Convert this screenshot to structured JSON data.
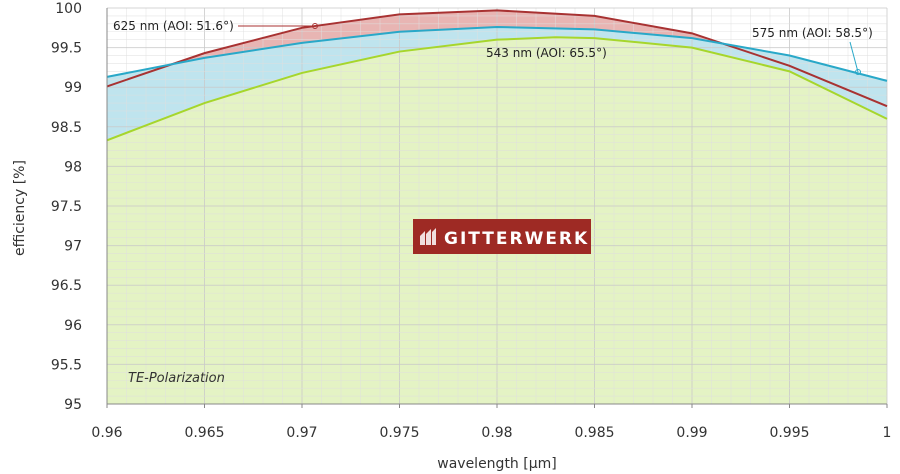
{
  "chart_data": {
    "type": "area",
    "xlabel": "wavelength [µm]",
    "ylabel": "efficiency [%]",
    "xlim": [
      0.96,
      1.0
    ],
    "ylim": [
      95,
      100
    ],
    "x_ticks": [
      "0.96",
      "0.965",
      "0.97",
      "0.975",
      "0.98",
      "0.985",
      "0.99",
      "0.995",
      "1"
    ],
    "y_ticks": [
      "95",
      "95.5",
      "96",
      "96.5",
      "97",
      "97.5",
      "98",
      "98.5",
      "99",
      "99.5",
      "100"
    ],
    "grid": true,
    "series": [
      {
        "name": "543 nm (AOI: 65.5°)",
        "color": "#a6d62c",
        "fill": "#e4f3c4",
        "x": [
          0.96,
          0.965,
          0.97,
          0.975,
          0.98,
          0.983,
          0.985,
          0.99,
          0.995,
          1.0
        ],
        "y": [
          98.33,
          98.8,
          99.18,
          99.45,
          99.6,
          99.63,
          99.62,
          99.5,
          99.2,
          98.6
        ]
      },
      {
        "name": "575 nm (AOI: 58.5°)",
        "color": "#29a8c8",
        "fill": "#bfe4ee",
        "x": [
          0.96,
          0.965,
          0.97,
          0.975,
          0.98,
          0.985,
          0.99,
          0.995,
          1.0
        ],
        "y": [
          99.13,
          99.37,
          99.56,
          99.7,
          99.76,
          99.73,
          99.62,
          99.4,
          99.08
        ]
      },
      {
        "name": "625 nm (AOI: 51.6°)",
        "color": "#a83232",
        "fill": "#e8b5b3",
        "x": [
          0.96,
          0.965,
          0.97,
          0.975,
          0.98,
          0.985,
          0.99,
          0.995,
          1.0
        ],
        "y": [
          99.01,
          99.43,
          99.75,
          99.92,
          99.97,
          99.9,
          99.68,
          99.27,
          98.76
        ]
      }
    ],
    "annotations": [
      "TE-Polarization"
    ]
  },
  "logo": {
    "text": "GITTERWERK",
    "color": "#9e2a24"
  }
}
